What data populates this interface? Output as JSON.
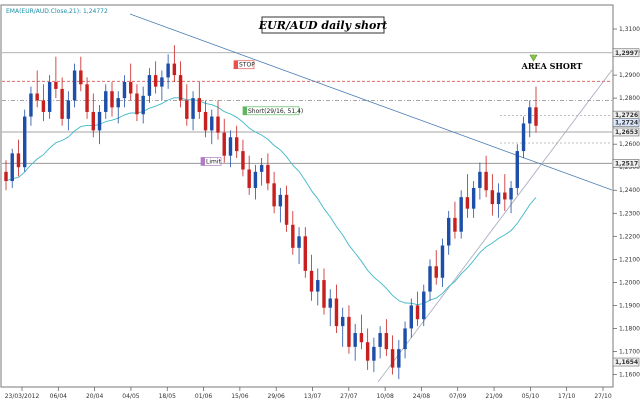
{
  "chart_data": {
    "type": "candlestick",
    "title": "EUR/AUD daily short",
    "indicator_label": "EMA(EUR/AUD.Close,21): 1,24772",
    "area_label": "AREA SHORT",
    "ylim": [
      1.155,
      1.32
    ],
    "y_ticks": [
      "1,3100",
      "1,3000",
      "1,2900",
      "1,2800",
      "1,2700",
      "1,2600",
      "1,2500",
      "1,2400",
      "1,2300",
      "1,2200",
      "1,2100",
      "1,2000",
      "1,1900",
      "1,1800",
      "1,1700",
      "1,1600"
    ],
    "x_ticks": [
      "23/03/2012",
      "06/04",
      "20/04",
      "04/05",
      "18/05",
      "01/06",
      "15/06",
      "29/06",
      "13/07",
      "27/07",
      "10/08",
      "24/08",
      "07/09",
      "21/09",
      "05/10",
      "17/10",
      "27/10"
    ],
    "price_tags": [
      {
        "text": "1,2997",
        "value": 1.2997
      },
      {
        "text": "1,2726",
        "value": 1.2726
      },
      {
        "text": "1,2724",
        "value": 1.2724
      },
      {
        "text": "1,2653",
        "value": 1.2653
      },
      {
        "text": "1,2517",
        "value": 1.2517
      },
      {
        "text": "1,1654",
        "value": 1.1654
      }
    ],
    "horizontal_levels": [
      1.2997,
      1.2873,
      1.279,
      1.2653,
      1.2517
    ],
    "annotations": [
      {
        "text": "STOP",
        "value": 1.2945,
        "color": "#e85050"
      },
      {
        "text": "Short(29/16, 51,4)",
        "value": 1.2745,
        "color": "#5cb85c"
      },
      {
        "text": "Limit",
        "value": 1.2525,
        "color": "#b07cc6"
      }
    ],
    "series": [
      {
        "name": "EMA(EUR/AUD.Close,21)",
        "color": "#3fb8c8"
      },
      {
        "name": "EUR/AUD",
        "up_color": "#1e4fa8",
        "down_color": "#c8201e"
      }
    ],
    "ohlc": [
      [
        1.248,
        1.253,
        1.24,
        1.244
      ],
      [
        1.244,
        1.258,
        1.241,
        1.256
      ],
      [
        1.256,
        1.262,
        1.246,
        1.25
      ],
      [
        1.25,
        1.275,
        1.248,
        1.272
      ],
      [
        1.272,
        1.285,
        1.268,
        1.282
      ],
      [
        1.282,
        1.292,
        1.276,
        1.279
      ],
      [
        1.279,
        1.286,
        1.27,
        1.274
      ],
      [
        1.274,
        1.29,
        1.271,
        1.287
      ],
      [
        1.287,
        1.298,
        1.28,
        1.284
      ],
      [
        1.284,
        1.289,
        1.268,
        1.271
      ],
      [
        1.271,
        1.283,
        1.266,
        1.279
      ],
      [
        1.279,
        1.295,
        1.276,
        1.292
      ],
      [
        1.292,
        1.298,
        1.283,
        1.286
      ],
      [
        1.286,
        1.289,
        1.271,
        1.274
      ],
      [
        1.274,
        1.282,
        1.263,
        1.266
      ],
      [
        1.266,
        1.277,
        1.26,
        1.274
      ],
      [
        1.274,
        1.286,
        1.271,
        1.283
      ],
      [
        1.283,
        1.287,
        1.272,
        1.276
      ],
      [
        1.276,
        1.283,
        1.269,
        1.28
      ],
      [
        1.28,
        1.29,
        1.276,
        1.287
      ],
      [
        1.287,
        1.295,
        1.279,
        1.282
      ],
      [
        1.282,
        1.286,
        1.27,
        1.273
      ],
      [
        1.273,
        1.285,
        1.269,
        1.281
      ],
      [
        1.281,
        1.293,
        1.278,
        1.29
      ],
      [
        1.29,
        1.296,
        1.282,
        1.285
      ],
      [
        1.285,
        1.292,
        1.279,
        1.289
      ],
      [
        1.289,
        1.299,
        1.284,
        1.295
      ],
      [
        1.295,
        1.303,
        1.287,
        1.29
      ],
      [
        1.29,
        1.296,
        1.276,
        1.279
      ],
      [
        1.279,
        1.286,
        1.268,
        1.271
      ],
      [
        1.271,
        1.283,
        1.266,
        1.28
      ],
      [
        1.28,
        1.287,
        1.271,
        1.274
      ],
      [
        1.274,
        1.279,
        1.263,
        1.266
      ],
      [
        1.266,
        1.275,
        1.26,
        1.272
      ],
      [
        1.272,
        1.279,
        1.262,
        1.265
      ],
      [
        1.265,
        1.271,
        1.252,
        1.255
      ],
      [
        1.255,
        1.266,
        1.25,
        1.263
      ],
      [
        1.263,
        1.268,
        1.254,
        1.257
      ],
      [
        1.257,
        1.262,
        1.246,
        1.249
      ],
      [
        1.249,
        1.255,
        1.238,
        1.241
      ],
      [
        1.241,
        1.251,
        1.236,
        1.248
      ],
      [
        1.248,
        1.254,
        1.242,
        1.251
      ],
      [
        1.251,
        1.256,
        1.24,
        1.243
      ],
      [
        1.243,
        1.248,
        1.23,
        1.233
      ],
      [
        1.233,
        1.241,
        1.226,
        1.238
      ],
      [
        1.238,
        1.242,
        1.222,
        1.225
      ],
      [
        1.225,
        1.231,
        1.212,
        1.215
      ],
      [
        1.215,
        1.224,
        1.208,
        1.22
      ],
      [
        1.22,
        1.224,
        1.202,
        1.205
      ],
      [
        1.205,
        1.212,
        1.192,
        1.196
      ],
      [
        1.196,
        1.206,
        1.19,
        1.201
      ],
      [
        1.201,
        1.206,
        1.186,
        1.189
      ],
      [
        1.189,
        1.197,
        1.181,
        1.193
      ],
      [
        1.193,
        1.199,
        1.178,
        1.181
      ],
      [
        1.181,
        1.189,
        1.172,
        1.185
      ],
      [
        1.185,
        1.19,
        1.169,
        1.172
      ],
      [
        1.172,
        1.182,
        1.166,
        1.178
      ],
      [
        1.178,
        1.186,
        1.171,
        1.174
      ],
      [
        1.174,
        1.18,
        1.162,
        1.166
      ],
      [
        1.166,
        1.176,
        1.161,
        1.172
      ],
      [
        1.172,
        1.181,
        1.167,
        1.178
      ],
      [
        1.178,
        1.184,
        1.168,
        1.171
      ],
      [
        1.171,
        1.177,
        1.16,
        1.163
      ],
      [
        1.163,
        1.175,
        1.158,
        1.171
      ],
      [
        1.171,
        1.183,
        1.167,
        1.18
      ],
      [
        1.18,
        1.193,
        1.176,
        1.19
      ],
      [
        1.19,
        1.196,
        1.181,
        1.184
      ],
      [
        1.184,
        1.199,
        1.181,
        1.196
      ],
      [
        1.196,
        1.21,
        1.192,
        1.207
      ],
      [
        1.207,
        1.214,
        1.199,
        1.202
      ],
      [
        1.202,
        1.219,
        1.198,
        1.216
      ],
      [
        1.216,
        1.231,
        1.212,
        1.228
      ],
      [
        1.228,
        1.235,
        1.219,
        1.222
      ],
      [
        1.222,
        1.24,
        1.219,
        1.237
      ],
      [
        1.237,
        1.247,
        1.228,
        1.232
      ],
      [
        1.232,
        1.244,
        1.228,
        1.241
      ],
      [
        1.241,
        1.252,
        1.236,
        1.248
      ],
      [
        1.248,
        1.255,
        1.237,
        1.24
      ],
      [
        1.24,
        1.247,
        1.229,
        1.234
      ],
      [
        1.234,
        1.243,
        1.228,
        1.239
      ],
      [
        1.239,
        1.247,
        1.231,
        1.236
      ],
      [
        1.236,
        1.244,
        1.23,
        1.241
      ],
      [
        1.241,
        1.26,
        1.238,
        1.257
      ],
      [
        1.257,
        1.272,
        1.254,
        1.269
      ],
      [
        1.269,
        1.279,
        1.263,
        1.276
      ],
      [
        1.276,
        1.285,
        1.265,
        1.268
      ]
    ]
  }
}
